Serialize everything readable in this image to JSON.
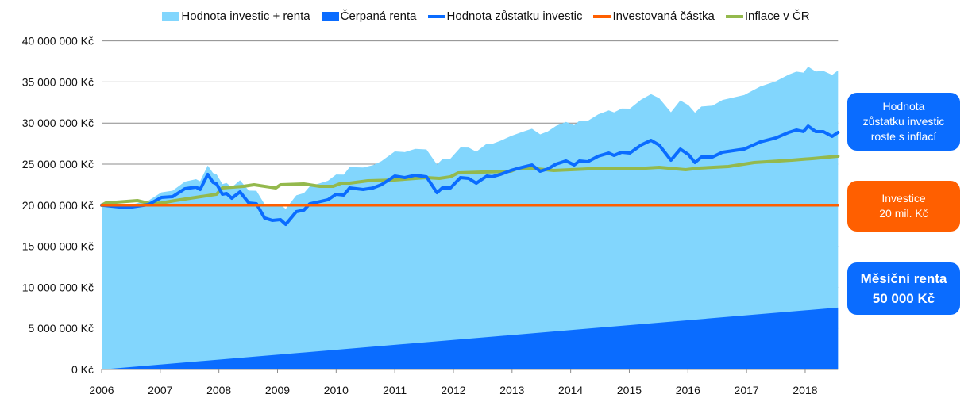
{
  "chart_data": {
    "type": "area",
    "title": "",
    "xlabel": "",
    "ylabel": "",
    "xlim": [
      2006,
      2018.56
    ],
    "ylim": [
      0,
      40000000
    ],
    "x_ticks": [
      "2006",
      "2007",
      "2008",
      "2009",
      "2010",
      "2011",
      "2012",
      "2013",
      "2014",
      "2015",
      "2016",
      "2017",
      "2018"
    ],
    "y_ticks": [
      "0 Kč",
      "5 000 000 Kč",
      "10 000 000 Kč",
      "15 000 000 Kč",
      "20 000 000 Kč",
      "25 000 000 Kč",
      "30 000 000 Kč",
      "35 000 000 Kč",
      "40 000 000 Kč"
    ],
    "grid": "horizontal",
    "legend_position": "top",
    "monthly_rent": 50000,
    "investment": 20000000,
    "series": [
      {
        "name": "Hodnota investic + renta",
        "kind": "area",
        "color": "#82d6fd",
        "derived": "remaining + drawn rent"
      },
      {
        "name": "Čerpaná renta",
        "kind": "area",
        "color": "#0a6cff",
        "derived": "monthly_rent * months since 2006"
      },
      {
        "name": "Hodnota zůstatku investic",
        "kind": "line",
        "color": "#0a6cff",
        "unit": "M Kč",
        "points": [
          [
            2006.0,
            20.0
          ],
          [
            2006.43,
            19.69
          ],
          [
            2006.8,
            20.08
          ],
          [
            2007.02,
            20.95
          ],
          [
            2007.21,
            21.04
          ],
          [
            2007.42,
            22.01
          ],
          [
            2007.61,
            22.2
          ],
          [
            2007.68,
            21.91
          ],
          [
            2007.81,
            23.75
          ],
          [
            2007.9,
            22.78
          ],
          [
            2007.96,
            22.59
          ],
          [
            2008.06,
            21.33
          ],
          [
            2008.13,
            21.43
          ],
          [
            2008.22,
            20.85
          ],
          [
            2008.36,
            21.62
          ],
          [
            2008.51,
            20.27
          ],
          [
            2008.64,
            20.17
          ],
          [
            2008.78,
            18.44
          ],
          [
            2008.91,
            18.15
          ],
          [
            2009.05,
            18.24
          ],
          [
            2009.14,
            17.66
          ],
          [
            2009.32,
            19.21
          ],
          [
            2009.45,
            19.4
          ],
          [
            2009.55,
            20.17
          ],
          [
            2009.68,
            20.37
          ],
          [
            2009.86,
            20.66
          ],
          [
            2010.0,
            21.33
          ],
          [
            2010.13,
            21.24
          ],
          [
            2010.23,
            22.1
          ],
          [
            2010.46,
            21.91
          ],
          [
            2010.63,
            22.1
          ],
          [
            2010.77,
            22.49
          ],
          [
            2011.0,
            23.55
          ],
          [
            2011.17,
            23.36
          ],
          [
            2011.35,
            23.65
          ],
          [
            2011.54,
            23.46
          ],
          [
            2011.72,
            21.52
          ],
          [
            2011.81,
            22.1
          ],
          [
            2011.95,
            22.1
          ],
          [
            2012.12,
            23.36
          ],
          [
            2012.26,
            23.26
          ],
          [
            2012.39,
            22.68
          ],
          [
            2012.57,
            23.55
          ],
          [
            2012.66,
            23.46
          ],
          [
            2012.8,
            23.75
          ],
          [
            2012.98,
            24.23
          ],
          [
            2013.17,
            24.61
          ],
          [
            2013.34,
            24.9
          ],
          [
            2013.48,
            24.13
          ],
          [
            2013.61,
            24.42
          ],
          [
            2013.75,
            25.0
          ],
          [
            2013.92,
            25.39
          ],
          [
            2014.06,
            24.9
          ],
          [
            2014.15,
            25.39
          ],
          [
            2014.29,
            25.29
          ],
          [
            2014.47,
            25.97
          ],
          [
            2014.65,
            26.35
          ],
          [
            2014.74,
            26.06
          ],
          [
            2014.87,
            26.45
          ],
          [
            2015.01,
            26.35
          ],
          [
            2015.2,
            27.32
          ],
          [
            2015.37,
            27.9
          ],
          [
            2015.51,
            27.32
          ],
          [
            2015.71,
            25.48
          ],
          [
            2015.87,
            26.83
          ],
          [
            2016.01,
            26.16
          ],
          [
            2016.12,
            25.19
          ],
          [
            2016.23,
            25.87
          ],
          [
            2016.42,
            25.87
          ],
          [
            2016.59,
            26.45
          ],
          [
            2016.96,
            26.83
          ],
          [
            2017.23,
            27.7
          ],
          [
            2017.5,
            28.19
          ],
          [
            2017.72,
            28.86
          ],
          [
            2017.85,
            29.15
          ],
          [
            2017.97,
            28.96
          ],
          [
            2018.05,
            29.63
          ],
          [
            2018.18,
            28.96
          ],
          [
            2018.31,
            28.96
          ],
          [
            2018.46,
            28.38
          ],
          [
            2018.56,
            28.86
          ]
        ]
      },
      {
        "name": "Investovaná částka",
        "kind": "line",
        "color": "#ff5f00",
        "unit": "M Kč",
        "points": [
          [
            2006.0,
            20.0
          ],
          [
            2018.56,
            20.0
          ]
        ]
      },
      {
        "name": "Inflace v ČR",
        "kind": "line",
        "color": "#94b94d",
        "unit": "M Kč",
        "points": [
          [
            2006.0,
            20.0
          ],
          [
            2006.07,
            20.27
          ],
          [
            2006.61,
            20.56
          ],
          [
            2006.84,
            20.17
          ],
          [
            2007.02,
            20.27
          ],
          [
            2007.25,
            20.56
          ],
          [
            2007.69,
            21.04
          ],
          [
            2007.96,
            21.33
          ],
          [
            2008.06,
            22.1
          ],
          [
            2008.42,
            22.3
          ],
          [
            2008.6,
            22.49
          ],
          [
            2008.97,
            22.1
          ],
          [
            2009.05,
            22.49
          ],
          [
            2009.45,
            22.59
          ],
          [
            2009.72,
            22.3
          ],
          [
            2009.95,
            22.3
          ],
          [
            2010.09,
            22.68
          ],
          [
            2010.23,
            22.68
          ],
          [
            2010.54,
            22.97
          ],
          [
            2011.0,
            23.07
          ],
          [
            2011.54,
            23.36
          ],
          [
            2011.76,
            23.26
          ],
          [
            2011.95,
            23.46
          ],
          [
            2012.08,
            23.94
          ],
          [
            2012.49,
            24.03
          ],
          [
            2012.98,
            24.13
          ],
          [
            2013.07,
            24.42
          ],
          [
            2013.44,
            24.42
          ],
          [
            2013.71,
            24.23
          ],
          [
            2014.29,
            24.42
          ],
          [
            2014.6,
            24.52
          ],
          [
            2015.06,
            24.42
          ],
          [
            2015.51,
            24.61
          ],
          [
            2015.96,
            24.32
          ],
          [
            2016.19,
            24.52
          ],
          [
            2016.69,
            24.71
          ],
          [
            2017.13,
            25.19
          ],
          [
            2017.77,
            25.48
          ],
          [
            2018.12,
            25.68
          ],
          [
            2018.56,
            25.97
          ]
        ]
      }
    ]
  },
  "legend": [
    "Hodnota investic + renta",
    "Čerpaná renta",
    "Hodnota zůstatku investic",
    "Investovaná částka",
    "Inflace v ČR"
  ],
  "callouts": {
    "inflation_note": "Hodnota\nzůstatku investic\nroste s inflací",
    "investment_note": "Investice\n20 mil. Kč",
    "rent_note": "Měsíční renta\n50 000 Kč"
  }
}
